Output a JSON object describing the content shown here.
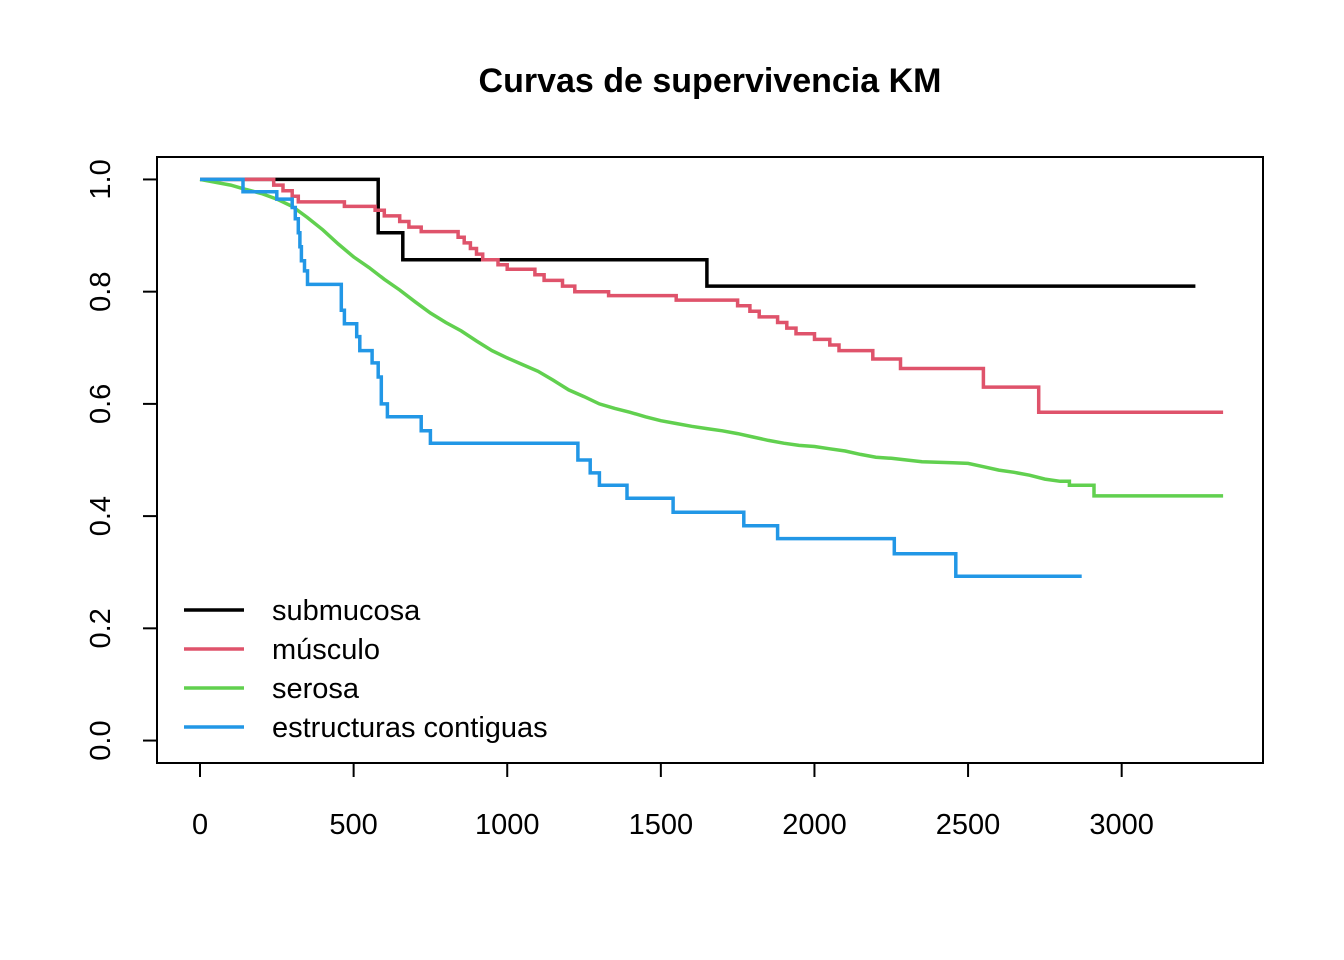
{
  "chart_data": {
    "type": "line",
    "title": "Curvas de supervivencia KM",
    "xlabel": "",
    "ylabel": "",
    "xlim": [
      -140,
      3460
    ],
    "ylim": [
      -0.04,
      1.04
    ],
    "x_ticks": [
      0,
      500,
      1000,
      1500,
      2000,
      2500,
      3000
    ],
    "x_tick_labels": [
      "0",
      "500",
      "1000",
      "1500",
      "2000",
      "2500",
      "3000"
    ],
    "y_ticks": [
      0.0,
      0.2,
      0.4,
      0.6,
      0.8,
      1.0
    ],
    "y_tick_labels": [
      "0.0",
      "0.2",
      "0.4",
      "0.6",
      "0.8",
      "1.0"
    ],
    "grid": false,
    "legend_position": "bottom-left",
    "series": [
      {
        "name": "submucosa",
        "color": "#000000",
        "points": [
          [
            0,
            1.0
          ],
          [
            580,
            1.0
          ],
          [
            580,
            0.905
          ],
          [
            660,
            0.905
          ],
          [
            660,
            0.857
          ],
          [
            1650,
            0.857
          ],
          [
            1650,
            0.81
          ],
          [
            3240,
            0.81
          ]
        ]
      },
      {
        "name": "músculo",
        "color": "#DF536B",
        "points": [
          [
            0,
            1.0
          ],
          [
            240,
            1.0
          ],
          [
            240,
            0.99
          ],
          [
            270,
            0.99
          ],
          [
            270,
            0.98
          ],
          [
            300,
            0.98
          ],
          [
            300,
            0.97
          ],
          [
            320,
            0.97
          ],
          [
            320,
            0.96
          ],
          [
            470,
            0.96
          ],
          [
            470,
            0.952
          ],
          [
            570,
            0.952
          ],
          [
            570,
            0.945
          ],
          [
            600,
            0.945
          ],
          [
            600,
            0.935
          ],
          [
            650,
            0.935
          ],
          [
            650,
            0.925
          ],
          [
            680,
            0.925
          ],
          [
            680,
            0.915
          ],
          [
            720,
            0.915
          ],
          [
            720,
            0.907
          ],
          [
            840,
            0.907
          ],
          [
            840,
            0.897
          ],
          [
            860,
            0.897
          ],
          [
            860,
            0.887
          ],
          [
            880,
            0.887
          ],
          [
            880,
            0.877
          ],
          [
            900,
            0.877
          ],
          [
            900,
            0.867
          ],
          [
            920,
            0.867
          ],
          [
            920,
            0.857
          ],
          [
            970,
            0.857
          ],
          [
            970,
            0.848
          ],
          [
            1000,
            0.848
          ],
          [
            1000,
            0.84
          ],
          [
            1090,
            0.84
          ],
          [
            1090,
            0.83
          ],
          [
            1120,
            0.83
          ],
          [
            1120,
            0.82
          ],
          [
            1180,
            0.82
          ],
          [
            1180,
            0.81
          ],
          [
            1220,
            0.81
          ],
          [
            1220,
            0.8
          ],
          [
            1330,
            0.8
          ],
          [
            1330,
            0.793
          ],
          [
            1550,
            0.793
          ],
          [
            1550,
            0.785
          ],
          [
            1750,
            0.785
          ],
          [
            1750,
            0.775
          ],
          [
            1790,
            0.775
          ],
          [
            1790,
            0.765
          ],
          [
            1820,
            0.765
          ],
          [
            1820,
            0.755
          ],
          [
            1880,
            0.755
          ],
          [
            1880,
            0.745
          ],
          [
            1910,
            0.745
          ],
          [
            1910,
            0.735
          ],
          [
            1940,
            0.735
          ],
          [
            1940,
            0.725
          ],
          [
            2000,
            0.725
          ],
          [
            2000,
            0.715
          ],
          [
            2050,
            0.715
          ],
          [
            2050,
            0.705
          ],
          [
            2080,
            0.705
          ],
          [
            2080,
            0.695
          ],
          [
            2190,
            0.695
          ],
          [
            2190,
            0.68
          ],
          [
            2280,
            0.68
          ],
          [
            2280,
            0.663
          ],
          [
            2550,
            0.663
          ],
          [
            2550,
            0.63
          ],
          [
            2730,
            0.63
          ],
          [
            2730,
            0.585
          ],
          [
            3330,
            0.585
          ]
        ]
      },
      {
        "name": "serosa",
        "color": "#61D04F",
        "points": [
          [
            0,
            1.0
          ],
          [
            50,
            0.995
          ],
          [
            100,
            0.99
          ],
          [
            150,
            0.982
          ],
          [
            200,
            0.975
          ],
          [
            250,
            0.965
          ],
          [
            300,
            0.952
          ],
          [
            350,
            0.932
          ],
          [
            400,
            0.91
          ],
          [
            450,
            0.885
          ],
          [
            500,
            0.862
          ],
          [
            550,
            0.843
          ],
          [
            600,
            0.822
          ],
          [
            650,
            0.803
          ],
          [
            700,
            0.782
          ],
          [
            750,
            0.762
          ],
          [
            800,
            0.745
          ],
          [
            850,
            0.73
          ],
          [
            900,
            0.712
          ],
          [
            950,
            0.695
          ],
          [
            1000,
            0.682
          ],
          [
            1050,
            0.67
          ],
          [
            1100,
            0.658
          ],
          [
            1150,
            0.642
          ],
          [
            1200,
            0.625
          ],
          [
            1250,
            0.613
          ],
          [
            1300,
            0.6
          ],
          [
            1350,
            0.592
          ],
          [
            1400,
            0.585
          ],
          [
            1450,
            0.577
          ],
          [
            1500,
            0.57
          ],
          [
            1550,
            0.565
          ],
          [
            1600,
            0.56
          ],
          [
            1650,
            0.556
          ],
          [
            1700,
            0.552
          ],
          [
            1750,
            0.547
          ],
          [
            1800,
            0.541
          ],
          [
            1850,
            0.535
          ],
          [
            1900,
            0.53
          ],
          [
            1950,
            0.526
          ],
          [
            2000,
            0.524
          ],
          [
            2050,
            0.52
          ],
          [
            2100,
            0.516
          ],
          [
            2150,
            0.51
          ],
          [
            2200,
            0.505
          ],
          [
            2250,
            0.503
          ],
          [
            2300,
            0.5
          ],
          [
            2350,
            0.497
          ],
          [
            2400,
            0.496
          ],
          [
            2450,
            0.495
          ],
          [
            2500,
            0.494
          ],
          [
            2550,
            0.488
          ],
          [
            2600,
            0.482
          ],
          [
            2650,
            0.478
          ],
          [
            2700,
            0.473
          ],
          [
            2750,
            0.466
          ],
          [
            2800,
            0.462
          ],
          [
            2830,
            0.462
          ],
          [
            2830,
            0.455
          ],
          [
            2910,
            0.455
          ],
          [
            2910,
            0.436
          ],
          [
            3330,
            0.436
          ]
        ]
      },
      {
        "name": "estructuras contiguas",
        "color": "#2297E6",
        "points": [
          [
            0,
            1.0
          ],
          [
            140,
            1.0
          ],
          [
            140,
            0.978
          ],
          [
            250,
            0.978
          ],
          [
            250,
            0.965
          ],
          [
            300,
            0.965
          ],
          [
            300,
            0.95
          ],
          [
            310,
            0.95
          ],
          [
            310,
            0.93
          ],
          [
            320,
            0.93
          ],
          [
            320,
            0.905
          ],
          [
            325,
            0.905
          ],
          [
            325,
            0.88
          ],
          [
            330,
            0.88
          ],
          [
            330,
            0.855
          ],
          [
            340,
            0.855
          ],
          [
            340,
            0.837
          ],
          [
            350,
            0.837
          ],
          [
            350,
            0.813
          ],
          [
            460,
            0.813
          ],
          [
            460,
            0.767
          ],
          [
            470,
            0.767
          ],
          [
            470,
            0.743
          ],
          [
            510,
            0.743
          ],
          [
            510,
            0.72
          ],
          [
            520,
            0.72
          ],
          [
            520,
            0.695
          ],
          [
            560,
            0.695
          ],
          [
            560,
            0.673
          ],
          [
            580,
            0.673
          ],
          [
            580,
            0.648
          ],
          [
            590,
            0.648
          ],
          [
            590,
            0.6
          ],
          [
            610,
            0.6
          ],
          [
            610,
            0.577
          ],
          [
            720,
            0.577
          ],
          [
            720,
            0.552
          ],
          [
            750,
            0.552
          ],
          [
            750,
            0.53
          ],
          [
            1230,
            0.53
          ],
          [
            1230,
            0.5
          ],
          [
            1270,
            0.5
          ],
          [
            1270,
            0.477
          ],
          [
            1300,
            0.477
          ],
          [
            1300,
            0.455
          ],
          [
            1390,
            0.455
          ],
          [
            1390,
            0.432
          ],
          [
            1540,
            0.432
          ],
          [
            1540,
            0.407
          ],
          [
            1770,
            0.407
          ],
          [
            1770,
            0.383
          ],
          [
            1880,
            0.383
          ],
          [
            1880,
            0.36
          ],
          [
            2260,
            0.36
          ],
          [
            2260,
            0.333
          ],
          [
            2460,
            0.333
          ],
          [
            2460,
            0.293
          ],
          [
            2870,
            0.293
          ]
        ]
      }
    ]
  }
}
